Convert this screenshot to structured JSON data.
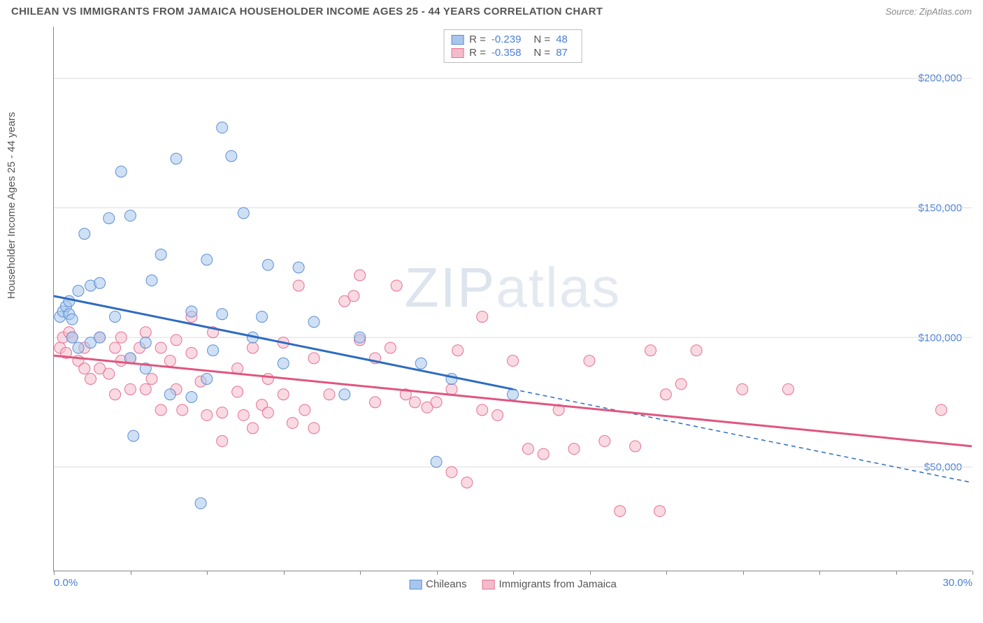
{
  "header": {
    "title": "CHILEAN VS IMMIGRANTS FROM JAMAICA HOUSEHOLDER INCOME AGES 25 - 44 YEARS CORRELATION CHART",
    "source": "Source: ZipAtlas.com"
  },
  "chart": {
    "type": "scatter",
    "y_label": "Householder Income Ages 25 - 44 years",
    "watermark": "ZIPatlas",
    "background_color": "#ffffff",
    "grid_color": "#dddddd",
    "axis_color": "#888888",
    "tick_label_color": "#4a7fd6",
    "xlim": [
      0,
      30
    ],
    "ylim": [
      10000,
      220000
    ],
    "y_ticks": [
      {
        "v": 50000,
        "label": "$50,000"
      },
      {
        "v": 100000,
        "label": "$100,000"
      },
      {
        "v": 150000,
        "label": "$150,000"
      },
      {
        "v": 200000,
        "label": "$200,000"
      }
    ],
    "x_ticks": [
      0,
      2.5,
      5.0,
      7.5,
      10.0,
      12.5,
      15.0,
      17.5,
      20.0,
      22.5,
      25.0,
      27.5,
      30.0
    ],
    "x_tick_labels": {
      "left": "0.0%",
      "right": "30.0%"
    },
    "legend_top": [
      {
        "swatch_fill": "#a8c6ec",
        "swatch_stroke": "#5b8fd4",
        "r_label": "R =",
        "r_val": "-0.239",
        "n_label": "N =",
        "n_val": "48"
      },
      {
        "swatch_fill": "#f4bccb",
        "swatch_stroke": "#e76f94",
        "r_label": "R =",
        "r_val": "-0.358",
        "n_label": "N =",
        "n_val": "87"
      }
    ],
    "legend_bottom": [
      {
        "swatch_fill": "#a8c6ec",
        "swatch_stroke": "#5b8fd4",
        "label": "Chileans"
      },
      {
        "swatch_fill": "#f4bccb",
        "swatch_stroke": "#e76f94",
        "label": "Immigrants from Jamaica"
      }
    ],
    "series": [
      {
        "name": "Chileans",
        "marker_fill": "rgba(168,198,236,0.55)",
        "marker_stroke": "#5b8fd4",
        "marker_radius": 8,
        "trend_line_color": "#2e6bc0",
        "trend_line_width": 3,
        "trend_solid": {
          "x1": 0,
          "y1": 116000,
          "x2": 15,
          "y2": 80000
        },
        "trend_dash": {
          "x1": 15,
          "y1": 80000,
          "x2": 30,
          "y2": 44000
        },
        "points": [
          [
            0.2,
            108000
          ],
          [
            0.3,
            110000
          ],
          [
            0.4,
            112000
          ],
          [
            0.5,
            114000
          ],
          [
            0.5,
            109000
          ],
          [
            0.6,
            100000
          ],
          [
            0.6,
            107000
          ],
          [
            0.8,
            96000
          ],
          [
            0.8,
            118000
          ],
          [
            1.0,
            140000
          ],
          [
            1.2,
            120000
          ],
          [
            1.2,
            98000
          ],
          [
            1.5,
            121000
          ],
          [
            1.5,
            100000
          ],
          [
            1.8,
            146000
          ],
          [
            2.0,
            108000
          ],
          [
            2.2,
            164000
          ],
          [
            2.5,
            147000
          ],
          [
            2.5,
            92000
          ],
          [
            2.6,
            62000
          ],
          [
            3.0,
            88000
          ],
          [
            3.0,
            98000
          ],
          [
            3.2,
            122000
          ],
          [
            3.5,
            132000
          ],
          [
            3.8,
            78000
          ],
          [
            4.0,
            169000
          ],
          [
            4.5,
            77000
          ],
          [
            4.5,
            110000
          ],
          [
            4.8,
            36000
          ],
          [
            5.0,
            130000
          ],
          [
            5.0,
            84000
          ],
          [
            5.2,
            95000
          ],
          [
            5.5,
            181000
          ],
          [
            5.5,
            109000
          ],
          [
            5.8,
            170000
          ],
          [
            6.2,
            148000
          ],
          [
            6.5,
            100000
          ],
          [
            6.8,
            108000
          ],
          [
            7.0,
            128000
          ],
          [
            7.5,
            90000
          ],
          [
            8.0,
            127000
          ],
          [
            8.5,
            106000
          ],
          [
            9.5,
            78000
          ],
          [
            10.0,
            100000
          ],
          [
            12.0,
            90000
          ],
          [
            12.5,
            52000
          ],
          [
            13.0,
            84000
          ],
          [
            15.0,
            78000
          ]
        ]
      },
      {
        "name": "Immigrants from Jamaica",
        "marker_fill": "rgba(244,188,203,0.55)",
        "marker_stroke": "#e76f94",
        "marker_radius": 8,
        "trend_line_color": "#e0557e",
        "trend_line_width": 3,
        "trend_solid": {
          "x1": 0,
          "y1": 93000,
          "x2": 30,
          "y2": 58000
        },
        "trend_dash": null,
        "points": [
          [
            0.2,
            96000
          ],
          [
            0.3,
            100000
          ],
          [
            0.4,
            94000
          ],
          [
            0.5,
            102000
          ],
          [
            0.6,
            100000
          ],
          [
            0.8,
            91000
          ],
          [
            1.0,
            96000
          ],
          [
            1.0,
            88000
          ],
          [
            1.2,
            84000
          ],
          [
            1.5,
            100000
          ],
          [
            1.5,
            88000
          ],
          [
            1.8,
            86000
          ],
          [
            2.0,
            96000
          ],
          [
            2.0,
            78000
          ],
          [
            2.2,
            91000
          ],
          [
            2.2,
            100000
          ],
          [
            2.5,
            80000
          ],
          [
            2.5,
            92000
          ],
          [
            2.8,
            96000
          ],
          [
            3.0,
            102000
          ],
          [
            3.0,
            80000
          ],
          [
            3.2,
            84000
          ],
          [
            3.5,
            72000
          ],
          [
            3.5,
            96000
          ],
          [
            3.8,
            91000
          ],
          [
            4.0,
            80000
          ],
          [
            4.0,
            99000
          ],
          [
            4.2,
            72000
          ],
          [
            4.5,
            108000
          ],
          [
            4.5,
            94000
          ],
          [
            4.8,
            83000
          ],
          [
            5.0,
            70000
          ],
          [
            5.2,
            102000
          ],
          [
            5.5,
            71000
          ],
          [
            5.5,
            60000
          ],
          [
            6.0,
            79000
          ],
          [
            6.0,
            88000
          ],
          [
            6.2,
            70000
          ],
          [
            6.5,
            96000
          ],
          [
            6.5,
            65000
          ],
          [
            6.8,
            74000
          ],
          [
            7.0,
            84000
          ],
          [
            7.0,
            71000
          ],
          [
            7.5,
            98000
          ],
          [
            7.5,
            78000
          ],
          [
            7.8,
            67000
          ],
          [
            8.0,
            120000
          ],
          [
            8.2,
            72000
          ],
          [
            8.5,
            92000
          ],
          [
            8.5,
            65000
          ],
          [
            9.0,
            78000
          ],
          [
            9.5,
            114000
          ],
          [
            9.8,
            116000
          ],
          [
            10.0,
            124000
          ],
          [
            10.0,
            99000
          ],
          [
            10.5,
            92000
          ],
          [
            10.5,
            75000
          ],
          [
            11.0,
            96000
          ],
          [
            11.2,
            120000
          ],
          [
            11.5,
            78000
          ],
          [
            11.8,
            75000
          ],
          [
            12.2,
            73000
          ],
          [
            12.5,
            75000
          ],
          [
            13.0,
            48000
          ],
          [
            13.0,
            80000
          ],
          [
            13.2,
            95000
          ],
          [
            13.5,
            44000
          ],
          [
            14.0,
            108000
          ],
          [
            14.0,
            72000
          ],
          [
            14.5,
            70000
          ],
          [
            15.0,
            91000
          ],
          [
            15.5,
            57000
          ],
          [
            16.0,
            55000
          ],
          [
            16.5,
            72000
          ],
          [
            17.0,
            57000
          ],
          [
            17.5,
            91000
          ],
          [
            18.0,
            60000
          ],
          [
            18.5,
            33000
          ],
          [
            19.0,
            58000
          ],
          [
            19.5,
            95000
          ],
          [
            19.8,
            33000
          ],
          [
            20.0,
            78000
          ],
          [
            20.5,
            82000
          ],
          [
            21.0,
            95000
          ],
          [
            22.5,
            80000
          ],
          [
            24.0,
            80000
          ],
          [
            29.0,
            72000
          ]
        ]
      }
    ]
  }
}
